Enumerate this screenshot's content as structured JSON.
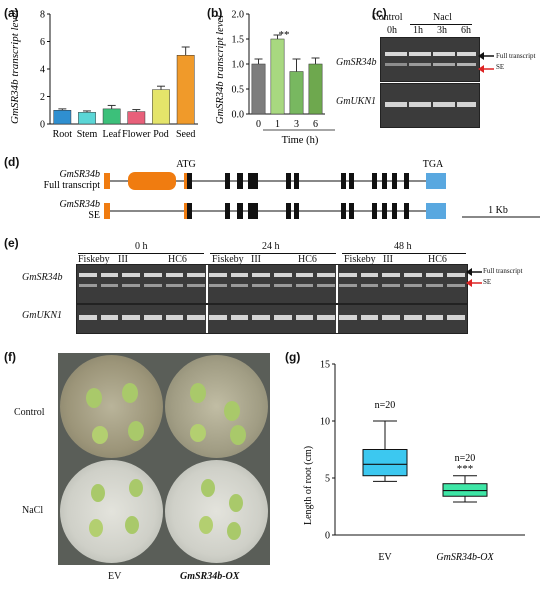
{
  "panels": {
    "a": "(a)",
    "b": "(b)",
    "c": "(c)",
    "d": "(d)",
    "e": "(e)",
    "f": "(f)",
    "g": "(g)"
  },
  "panel_a": {
    "ylabel": "GmSR34b transcript level",
    "yticks": [
      "0",
      "2",
      "4",
      "6",
      "8"
    ]
  },
  "panel_b": {
    "ylabel": "GmSR34b transcript level",
    "yticks": [
      "0.0",
      "0.5",
      "1.0",
      "1.5",
      "2.0"
    ],
    "xlabel": "Time (h)",
    "significance": "**"
  },
  "panel_c": {
    "control": "Control",
    "nacl": "Nacl",
    "lanes": [
      "0h",
      "1h",
      "3h",
      "6h"
    ],
    "gene1": "GmSR34b",
    "gene2": "GmUKN1",
    "full": "Full  transcript",
    "se": "SE"
  },
  "panel_d": {
    "atg": "ATG",
    "tga": "TGA",
    "row1_gene": "GmSR34b",
    "row1_sub": "Full transcript",
    "row2_gene": "GmSR34b",
    "row2_sub": "SE",
    "scale": "1 Kb"
  },
  "panel_e": {
    "times": [
      "0 h",
      "24 h",
      "48 h"
    ],
    "genotypes": [
      "Fiskeby",
      "III",
      "HC6"
    ],
    "gene1": "GmSR34b",
    "gene2": "GmUKN1",
    "full": "Full transcript",
    "se": "SE"
  },
  "panel_f": {
    "row1": "Control",
    "row2": "NaCl",
    "col1": "EV",
    "col2": "GmSR34b-OX"
  },
  "panel_g": {
    "ylabel": "Length of root (cm)",
    "yticks": [
      "0",
      "5",
      "10",
      "15"
    ],
    "categories": [
      "EV",
      "GmSR34b-OX"
    ],
    "n_labels": [
      "n=20",
      "n=20"
    ],
    "significance": "***"
  },
  "chart_data": [
    {
      "type": "bar",
      "panel": "a",
      "categories": [
        "Root",
        "Stem",
        "Leaf",
        "Flower",
        "Pod",
        "Seed"
      ],
      "values": [
        1.0,
        0.85,
        1.1,
        0.9,
        2.5,
        5.0
      ],
      "errors": [
        0.1,
        0.1,
        0.25,
        0.15,
        0.25,
        0.6
      ],
      "colors": [
        "#2f8fd0",
        "#5bd6d6",
        "#3cc07a",
        "#e8607a",
        "#e4e46a",
        "#f09a2a"
      ],
      "ylabel": "GmSR34b transcript level",
      "ylim": [
        0,
        8
      ]
    },
    {
      "type": "bar",
      "panel": "b",
      "categories": [
        "0",
        "1",
        "3",
        "6"
      ],
      "values": [
        1.0,
        1.5,
        0.85,
        1.0
      ],
      "errors": [
        0.1,
        0.08,
        0.25,
        0.12
      ],
      "colors": [
        "#7d7d7d",
        "#a8d880",
        "#78b860",
        "#6ea84e"
      ],
      "ylabel": "GmSR34b transcript level",
      "xlabel": "Time (h)",
      "ylim": [
        0,
        2.0
      ]
    },
    {
      "type": "box",
      "panel": "g",
      "categories": [
        "EV",
        "GmSR34b-OX"
      ],
      "boxes": [
        {
          "min": 4.7,
          "q1": 5.2,
          "median": 6.2,
          "q3": 7.5,
          "max": 10.0
        },
        {
          "min": 2.9,
          "q1": 3.4,
          "median": 3.9,
          "q3": 4.5,
          "max": 5.2
        }
      ],
      "colors": [
        "#3cc8f0",
        "#3ee6a6"
      ],
      "ylabel": "Length of root (cm)",
      "ylim": [
        0,
        15
      ]
    }
  ]
}
